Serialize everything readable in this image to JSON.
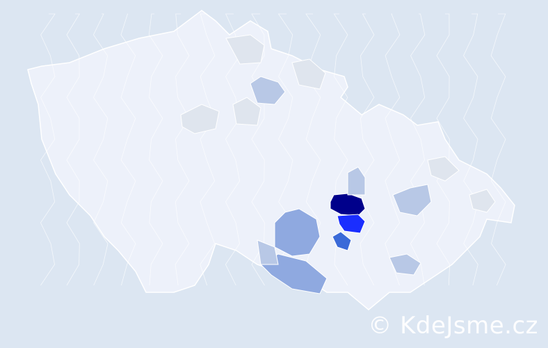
{
  "watermark": "© KdeJsme.cz",
  "colors": {
    "background": "#dce6f2",
    "base_region": "#edf1fa",
    "border": "#ffffff",
    "scale": [
      "#dfe5ee",
      "#b8c8e6",
      "#8fa9e0",
      "#3a6ad8",
      "#1a2eff",
      "#00008b"
    ]
  },
  "highlighted_regions": [
    {
      "level": 5
    },
    {
      "level": 4
    },
    {
      "level": 3
    },
    {
      "level": 2
    },
    {
      "level": 2
    },
    {
      "level": 1
    },
    {
      "level": 1
    },
    {
      "level": 1
    },
    {
      "level": 1
    },
    {
      "level": 1
    },
    {
      "level": 0
    },
    {
      "level": 0
    },
    {
      "level": 0
    },
    {
      "level": 0
    },
    {
      "level": 0
    },
    {
      "level": 0
    }
  ]
}
